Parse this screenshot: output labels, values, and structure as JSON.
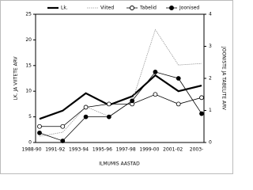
{
  "chart_data": {
    "type": "line",
    "categories": [
      "1988-90",
      "1991-92",
      "1993-94",
      "1995-96",
      "1997-98",
      "1999-00",
      "2001-02",
      "2003-"
    ],
    "series": [
      {
        "name": "Lk.",
        "color": "#000000",
        "values": [
          4.6,
          6.2,
          9.6,
          7.3,
          9.0,
          13.1,
          10.0,
          11.1
        ]
      },
      {
        "name": "Viited",
        "color": "#999999",
        "values": [
          1.2,
          2.0,
          7.0,
          5.1,
          8.0,
          22.0,
          15.1,
          15.4
        ]
      },
      {
        "name": "Tabelid",
        "color": "#000000",
        "axis": "y2",
        "values": [
          0.5,
          0.5,
          1.1,
          1.2,
          1.2,
          1.5,
          1.2,
          1.4
        ]
      },
      {
        "name": "Joonised",
        "color": "#000000",
        "axis": "y2",
        "values": [
          0.3,
          0.05,
          0.8,
          0.8,
          1.3,
          2.2,
          2.0,
          0.9
        ]
      }
    ],
    "ylim": [
      0,
      25
    ],
    "yticks": [
      0,
      5,
      10,
      15,
      20,
      25
    ],
    "y2lim": [
      0,
      4
    ],
    "y2ticks": [
      0,
      1,
      2,
      3,
      4
    ],
    "y_label": "LK. JA VIITETE ARV",
    "y2_label": "JOONISTE JA TABELITE ARV",
    "x_label": "ILMUMIS AASTAD"
  }
}
